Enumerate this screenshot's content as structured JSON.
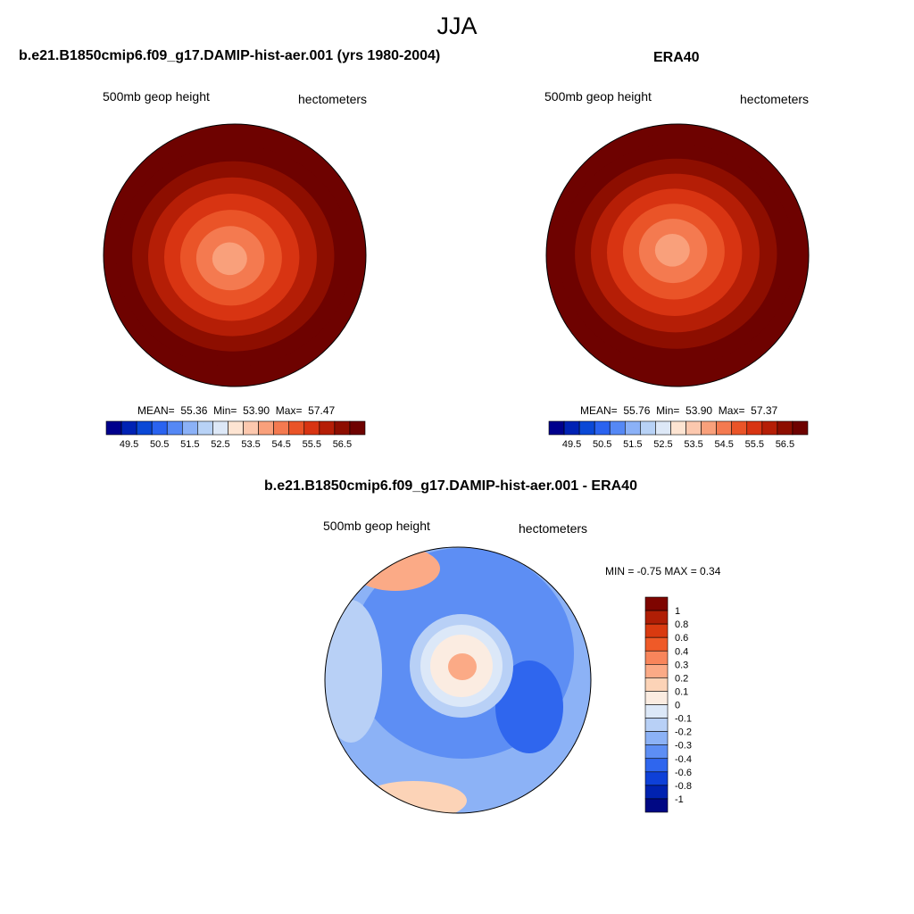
{
  "season": "JJA",
  "panels": {
    "model": {
      "title": "b.e21.B1850cmip6.f09_g17.DAMIP-hist-aer.001 (yrs 1980-2004)",
      "left_label": "500mb geop height",
      "right_label": "hectometers",
      "mean_label": "MEAN=",
      "mean": "55.36",
      "min_label": "Min=",
      "min": "53.90",
      "max_label": "Max=",
      "max": "57.47"
    },
    "obs": {
      "title": "ERA40",
      "left_label": "500mb geop height",
      "right_label": "hectometers",
      "mean_label": "MEAN=",
      "mean": "55.76",
      "min_label": "Min=",
      "min": "53.90",
      "max_label": "Max=",
      "max": "57.37"
    },
    "diff": {
      "title": "b.e21.B1850cmip6.f09_g17.DAMIP-hist-aer.001 - ERA40",
      "left_label": "500mb geop height",
      "right_label": "hectometers",
      "minmax": "MIN =  -0.75 MAX =   0.34"
    }
  },
  "chart_data": [
    {
      "type": "heatmap",
      "title": "b.e21.B1850cmip6.f09_g17.DAMIP-hist-aer.001 (yrs 1980-2004)",
      "projection": "north polar stereographic",
      "variable": "500mb geop height",
      "units": "hectometers",
      "mean": 55.36,
      "min": 53.9,
      "max": 57.47,
      "colorbar_ticks": [
        "49.5",
        "50.5",
        "51.5",
        "52.5",
        "53.5",
        "54.5",
        "55.5",
        "56.5"
      ],
      "levels": [
        49.5,
        49.75,
        50,
        50.5,
        51,
        51.5,
        52,
        52.5,
        53,
        53.5,
        54,
        54.5,
        55,
        55.5,
        56,
        56.5
      ],
      "colors": [
        "#00008c",
        "#0022b4",
        "#0a48d6",
        "#2a63f0",
        "#5588f5",
        "#8bb1f7",
        "#b8d2f6",
        "#dde8f7",
        "#fde4d2",
        "#fcc8ae",
        "#f9a07b",
        "#f47a50",
        "#ea5428",
        "#d83412",
        "#b51e06",
        "#8d0e00",
        "#6e0200"
      ],
      "field_contours": [
        {
          "hm": 54.0
        },
        {
          "hm": 54.5
        },
        {
          "hm": 55.0
        },
        {
          "hm": 55.5
        },
        {
          "hm": 56.0
        },
        {
          "hm": 56.5
        },
        {
          "hm": 57.0
        }
      ]
    },
    {
      "type": "heatmap",
      "title": "ERA40",
      "projection": "north polar stereographic",
      "variable": "500mb geop height",
      "units": "hectometers",
      "mean": 55.76,
      "min": 53.9,
      "max": 57.37,
      "colorbar_ticks": [
        "49.5",
        "50.5",
        "51.5",
        "52.5",
        "53.5",
        "54.5",
        "55.5",
        "56.5"
      ],
      "levels": [
        49.5,
        49.75,
        50,
        50.5,
        51,
        51.5,
        52,
        52.5,
        53,
        53.5,
        54,
        54.5,
        55,
        55.5,
        56,
        56.5
      ],
      "colors": [
        "#00008c",
        "#0022b4",
        "#0a48d6",
        "#2a63f0",
        "#5588f5",
        "#8bb1f7",
        "#b8d2f6",
        "#dde8f7",
        "#fde4d2",
        "#fcc8ae",
        "#f9a07b",
        "#f47a50",
        "#ea5428",
        "#d83412",
        "#b51e06",
        "#8d0e00",
        "#6e0200"
      ],
      "field_contours": [
        {
          "hm": 54.0
        },
        {
          "hm": 54.5
        },
        {
          "hm": 55.0
        },
        {
          "hm": 55.5
        },
        {
          "hm": 56.0
        },
        {
          "hm": 56.5
        },
        {
          "hm": 57.0
        }
      ]
    },
    {
      "type": "heatmap",
      "title": "b.e21.B1850cmip6.f09_g17.DAMIP-hist-aer.001 - ERA40",
      "projection": "north polar stereographic",
      "variable": "500mb geop height",
      "units": "hectometers",
      "min": -0.75,
      "max": 0.34,
      "colorbar_labels": [
        "1",
        "0.8",
        "0.6",
        "0.4",
        "0.3",
        "0.2",
        "0.1",
        "0",
        "-0.1",
        "-0.2",
        "-0.3",
        "-0.4",
        "-0.6",
        "-0.8",
        "-1"
      ],
      "colors": [
        "#7e0500",
        "#b01e05",
        "#d93a10",
        "#ef5a28",
        "#f8855b",
        "#fbaa86",
        "#fcd3b7",
        "#fbece1",
        "#dce8f8",
        "#b8d0f6",
        "#8cb2f6",
        "#5d8ef4",
        "#2f66ee",
        "#0e40d8",
        "#0022b0",
        "#000884"
      ],
      "field_contours": [
        {
          "hm": -0.4
        },
        {
          "hm": -0.2
        },
        {
          "hm": 0.0
        },
        {
          "hm": 0.2
        }
      ]
    }
  ]
}
